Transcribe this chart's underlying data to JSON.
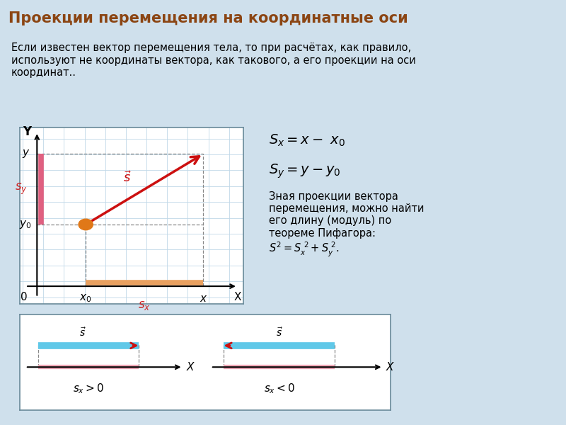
{
  "title": "Проекции перемещения на координатные оси",
  "title_bg": "#4a8a9a",
  "title_color": "#8B4513",
  "page_bg": "#cfe0ec",
  "intro_text": "Если известен вектор перемещения тела, то при расчётах, как правило,\nиспользуют не координаты вектора, как такового, а его проекции на оси\nкоординат..",
  "formula1": "$S_x = x -\\  x_0$",
  "formula2": "$S_y = y - y_0$",
  "formula_text": "Зная проекции вектора\nперемещения, можно найти\nего длину (модуль) по\nтеореме Пифагора:\n$S^2 = S_x^{\\ 2} + S_y^{\\ 2}.$",
  "graph_bg": "white",
  "graph_border": "#6a8a9a",
  "grid_color": "#c0d8e8",
  "arrow_color": "#cc1010",
  "sx_bar_color": "#e8a060",
  "sy_bar_color": "#e06080",
  "dot_color": "#e07818",
  "dashed_color": "#888888",
  "label_sx_color": "#cc2222",
  "label_sy_color": "#cc2222",
  "bottom_panel_bg": "white",
  "bottom_border": "#6a8a9a",
  "cyan_bar": "#60c8e8",
  "pink_bar": "#f0a8b8",
  "red_arrow": "#cc1010"
}
